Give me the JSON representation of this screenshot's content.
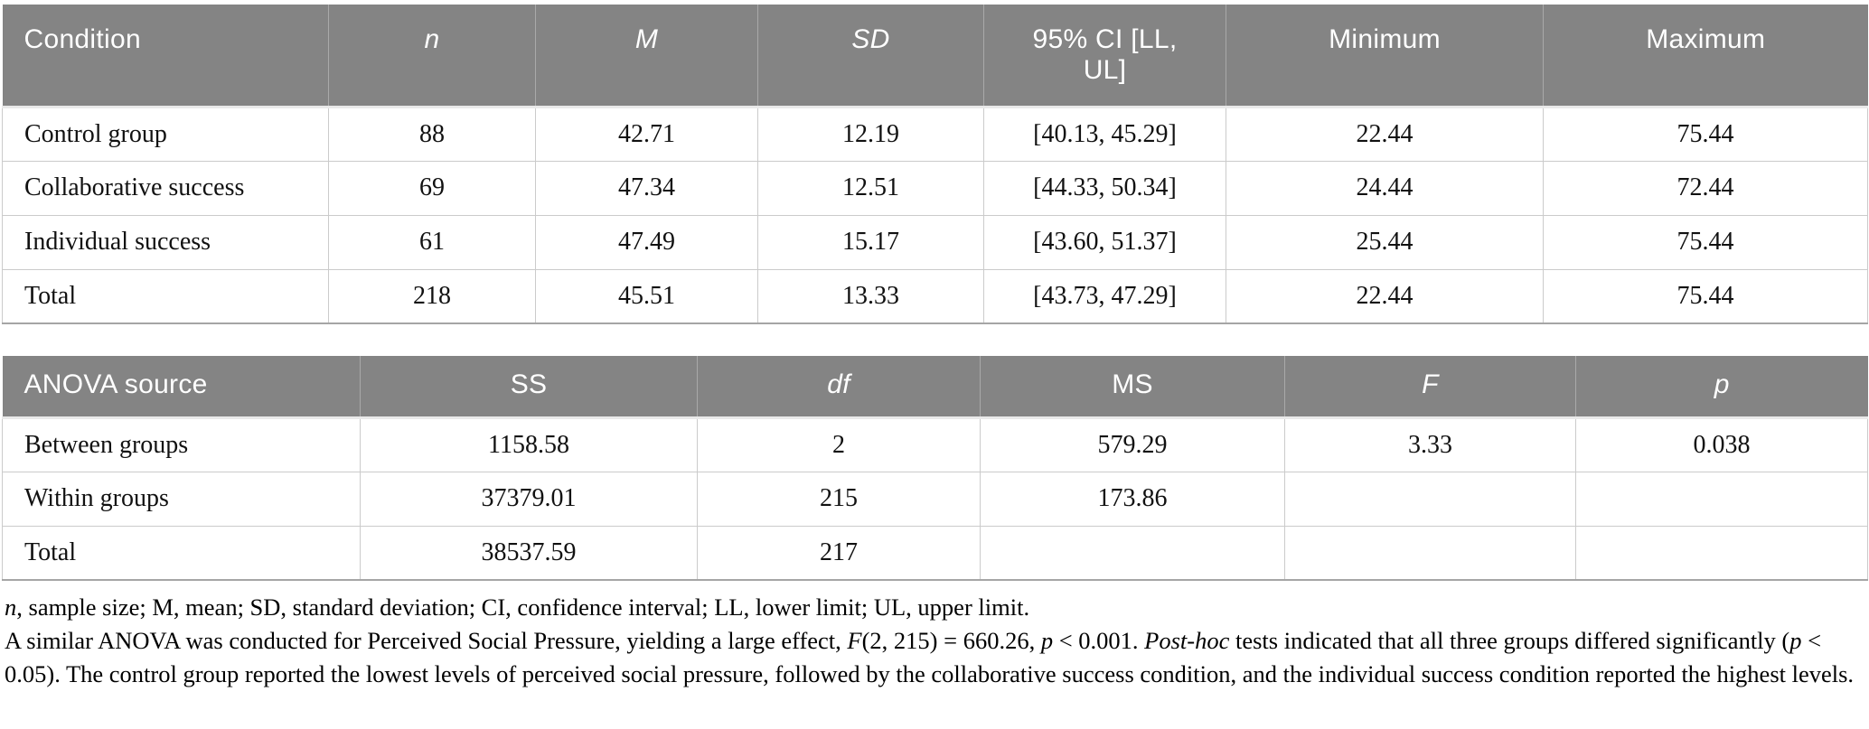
{
  "colors": {
    "header_bg": "#848484",
    "header_text": "#ffffff",
    "cell_border": "#cbcbcb",
    "table_bottom_border": "#a5a5a5",
    "body_text": "#111111"
  },
  "descriptives_table": {
    "columns": [
      {
        "label": "Condition",
        "italic": false
      },
      {
        "label": "n",
        "italic": true
      },
      {
        "label": "M",
        "italic": true
      },
      {
        "label": "SD",
        "italic": true
      },
      {
        "label": "95% CI [LL, UL]",
        "italic": false
      },
      {
        "label": "Minimum",
        "italic": false
      },
      {
        "label": "Maximum",
        "italic": false
      }
    ],
    "rows": [
      {
        "condition": "Control group",
        "n": "88",
        "m": "42.71",
        "sd": "12.19",
        "ci": "[40.13, 45.29]",
        "min": "22.44",
        "max": "75.44"
      },
      {
        "condition": "Collaborative success",
        "n": "69",
        "m": "47.34",
        "sd": "12.51",
        "ci": "[44.33, 50.34]",
        "min": "24.44",
        "max": "72.44"
      },
      {
        "condition": "Individual success",
        "n": "61",
        "m": "47.49",
        "sd": "15.17",
        "ci": "[43.60, 51.37]",
        "min": "25.44",
        "max": "75.44"
      },
      {
        "condition": "Total",
        "n": "218",
        "m": "45.51",
        "sd": "13.33",
        "ci": "[43.73, 47.29]",
        "min": "22.44",
        "max": "75.44"
      }
    ]
  },
  "anova_table": {
    "columns": [
      {
        "label": "ANOVA source",
        "italic": false
      },
      {
        "label": "SS",
        "italic": false
      },
      {
        "label": "df",
        "italic": true
      },
      {
        "label": "MS",
        "italic": false
      },
      {
        "label": "F",
        "italic": true
      },
      {
        "label": "p",
        "italic": true
      }
    ],
    "rows": [
      {
        "source": "Between groups",
        "ss": "1158.58",
        "df": "2",
        "ms": "579.29",
        "f": "3.33",
        "p": "0.038"
      },
      {
        "source": "Within groups",
        "ss": "37379.01",
        "df": "215",
        "ms": "173.86",
        "f": "",
        "p": ""
      },
      {
        "source": "Total",
        "ss": "38537.59",
        "df": "217",
        "ms": "",
        "f": "",
        "p": ""
      }
    ]
  },
  "footnotes": {
    "abbreviations": [
      {
        "t": "n",
        "i": true
      },
      {
        "t": ", sample size; M, mean; SD, standard deviation; CI, confidence interval; LL, lower limit; UL, upper limit.",
        "i": false
      }
    ],
    "anova_note": [
      {
        "t": "A similar ANOVA was conducted for Perceived Social Pressure, yielding a large effect, ",
        "i": false
      },
      {
        "t": "F",
        "i": true
      },
      {
        "t": "(2, 215) = 660.26, ",
        "i": false
      },
      {
        "t": "p",
        "i": true
      },
      {
        "t": " < 0.001. ",
        "i": false
      },
      {
        "t": "Post-hoc",
        "i": true
      },
      {
        "t": " tests indicated that all three groups differed significantly (",
        "i": false
      },
      {
        "t": "p",
        "i": true
      },
      {
        "t": " < 0.05). The control group reported the lowest levels of perceived social pressure, followed by the collaborative success condition, and the individual success condition reported the highest levels.",
        "i": false
      }
    ]
  }
}
